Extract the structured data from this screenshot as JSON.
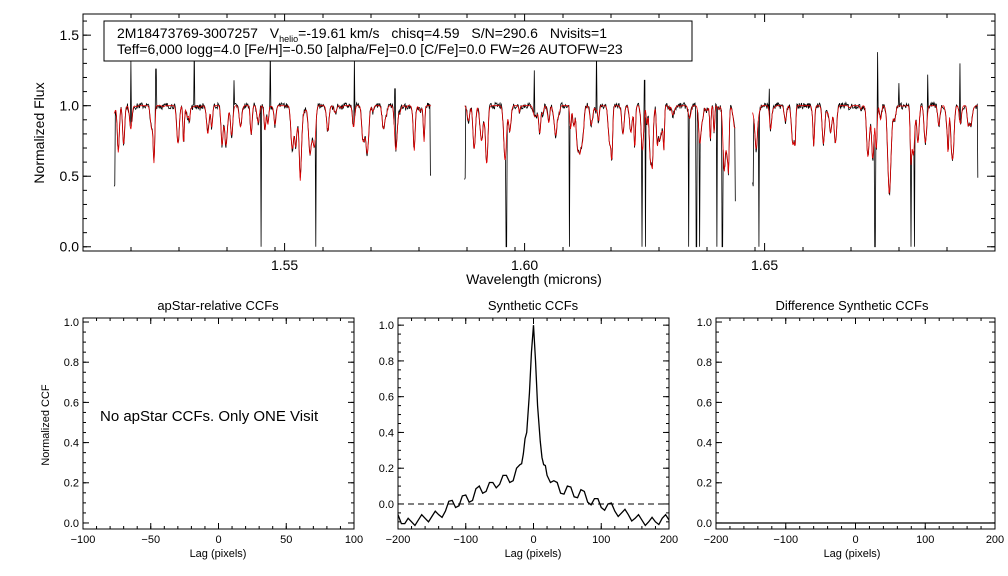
{
  "chart_data": [
    {
      "type": "line",
      "title_line1": {
        "star": "2M18473769-3007257",
        "v_label": "V",
        "v_sub": "helio",
        "v_value": "=-19.61 km/s",
        "chisq": "chisq=4.59",
        "snr": "S/N=290.6",
        "nvisits": "Nvisits=1"
      },
      "title_line2": "Teff=6,000 logg=4.0 [Fe/H]=-0.50 [alpha/Fe]=0.0 [C/Fe]=0.0 FW=26 AUTOFW=23",
      "xlabel": "Wavelength (microns)",
      "ylabel": "Normalized Flux",
      "xlim": [
        1.508,
        1.698
      ],
      "ylim": [
        -0.03,
        1.65
      ],
      "xticks": [
        1.55,
        1.6,
        1.65
      ],
      "xtick_labels": [
        "1.55",
        "1.60",
        "1.65"
      ],
      "yticks": [
        0.0,
        0.5,
        1.0,
        1.5
      ],
      "ytick_labels": [
        "0.0",
        "0.5",
        "1.0",
        "1.5"
      ],
      "chips": [
        [
          1.5145,
          1.5805
        ],
        [
          1.5875,
          1.644
        ],
        [
          1.6475,
          1.6945
        ]
      ],
      "series": [
        {
          "name": "observed",
          "color": "#000000"
        },
        {
          "name": "synthetic",
          "color": "#e00000"
        }
      ]
    },
    {
      "type": "line",
      "title": "apStar-relative CCFs",
      "xlabel": "Lag (pixels)",
      "ylabel": "Normalized CCF",
      "xlim": [
        -100,
        100
      ],
      "ylim": [
        -0.03,
        1.02
      ],
      "xticks": [
        -100,
        -50,
        0,
        50,
        100
      ],
      "xtick_labels": [
        "-100",
        "-50",
        "0",
        "50",
        "100"
      ],
      "yticks": [
        0.0,
        0.2,
        0.4,
        0.6,
        0.8,
        1.0
      ],
      "ytick_labels": [
        "0.0",
        "0.2",
        "0.4",
        "0.6",
        "0.8",
        "1.0"
      ],
      "message": "No apStar CCFs.  Only ONE Visit"
    },
    {
      "type": "line",
      "title": "Synthetic CCFs",
      "xlabel": "Lag (pixels)",
      "xlim": [
        -200,
        200
      ],
      "ylim": [
        -0.14,
        1.04
      ],
      "xticks": [
        -200,
        -100,
        0,
        100,
        200
      ],
      "xtick_labels": [
        "-200",
        "-100",
        "0",
        "100",
        "200"
      ],
      "yticks": [
        0.0,
        0.2,
        0.4,
        0.6,
        0.8,
        1.0
      ],
      "ytick_labels": [
        "0.0",
        "0.2",
        "0.4",
        "0.6",
        "0.8",
        "1.0"
      ],
      "zero_line": 0.0,
      "series": [
        {
          "name": "ccf",
          "x": [
            -200,
            -190,
            -180,
            -170,
            -160,
            -150,
            -140,
            -130,
            -120,
            -110,
            -100,
            -90,
            -80,
            -70,
            -60,
            -50,
            -40,
            -30,
            -20,
            -15,
            -10,
            -6,
            -3,
            0,
            3,
            6,
            10,
            15,
            20,
            30,
            40,
            50,
            60,
            70,
            80,
            90,
            100,
            110,
            120,
            130,
            140,
            150,
            160,
            170,
            180,
            190,
            200
          ],
          "y": [
            -0.06,
            -0.11,
            -0.1,
            -0.09,
            -0.08,
            -0.07,
            -0.06,
            -0.04,
            0.02,
            -0.01,
            0.05,
            0.02,
            0.1,
            0.07,
            0.12,
            0.11,
            0.16,
            0.13,
            0.22,
            0.28,
            0.4,
            0.62,
            0.85,
            1.0,
            0.8,
            0.55,
            0.35,
            0.22,
            0.16,
            0.13,
            0.06,
            0.1,
            0.04,
            0.08,
            0.01,
            0.03,
            -0.02,
            0.0,
            -0.04,
            -0.05,
            -0.06,
            -0.08,
            -0.09,
            -0.1,
            -0.1,
            -0.08,
            -0.09
          ]
        }
      ]
    },
    {
      "type": "line",
      "title": "Difference Synthetic CCFs",
      "xlabel": "Lag (pixels)",
      "xlim": [
        -200,
        200
      ],
      "ylim": [
        -0.03,
        1.02
      ],
      "xticks": [
        -200,
        -100,
        0,
        100,
        200
      ],
      "xtick_labels": [
        "-200",
        "-100",
        "0",
        "100",
        "200"
      ],
      "yticks": [
        0.0,
        0.2,
        0.4,
        0.6,
        0.8,
        1.0
      ],
      "ytick_labels": [
        "0.0",
        "0.2",
        "0.4",
        "0.6",
        "0.8",
        "1.0"
      ],
      "series": [
        {
          "name": "difference",
          "x": [
            -200,
            200
          ],
          "y": [
            0.0,
            0.0
          ]
        }
      ]
    }
  ]
}
